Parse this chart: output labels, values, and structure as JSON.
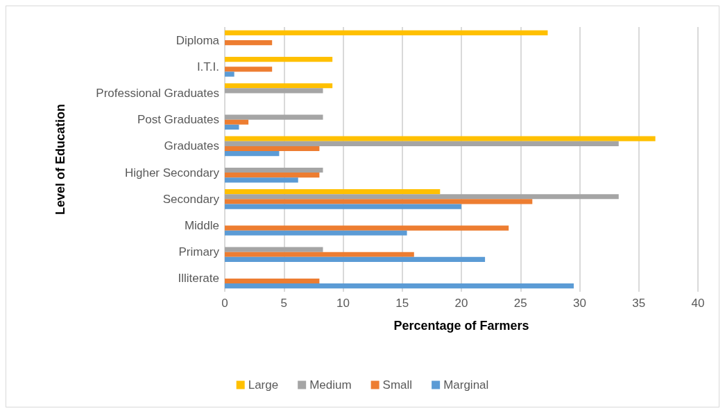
{
  "chart_data": {
    "type": "bar",
    "orientation": "horizontal",
    "xlabel": "Percentage of Farmers",
    "ylabel": "Level of Education",
    "categories": [
      "Diploma",
      "I.T.I.",
      "Professional Graduates",
      "Post Graduates",
      "Graduates",
      "Higher Secondary",
      "Secondary",
      "Middle",
      "Primary",
      "Illiterate"
    ],
    "series": [
      {
        "name": "Large",
        "color": "#ffc000",
        "values": [
          27.3,
          9.1,
          9.1,
          null,
          36.4,
          null,
          18.2,
          null,
          null,
          null
        ]
      },
      {
        "name": "Medium",
        "color": "#a5a5a5",
        "values": [
          null,
          null,
          8.3,
          8.3,
          33.3,
          8.3,
          33.3,
          null,
          8.3,
          null
        ]
      },
      {
        "name": "Small",
        "color": "#ed7d31",
        "values": [
          4,
          4,
          null,
          2,
          8,
          8,
          26,
          24,
          16,
          8
        ]
      },
      {
        "name": "Marginal",
        "color": "#5b9bd5",
        "values": [
          null,
          0.8,
          null,
          1.2,
          4.6,
          6.2,
          20,
          15.4,
          22,
          29.5
        ]
      }
    ],
    "xlim": [
      0,
      40
    ],
    "xticks": [
      0,
      5,
      10,
      15,
      20,
      25,
      30,
      35,
      40
    ],
    "grid": "x",
    "legend": "bottom"
  }
}
